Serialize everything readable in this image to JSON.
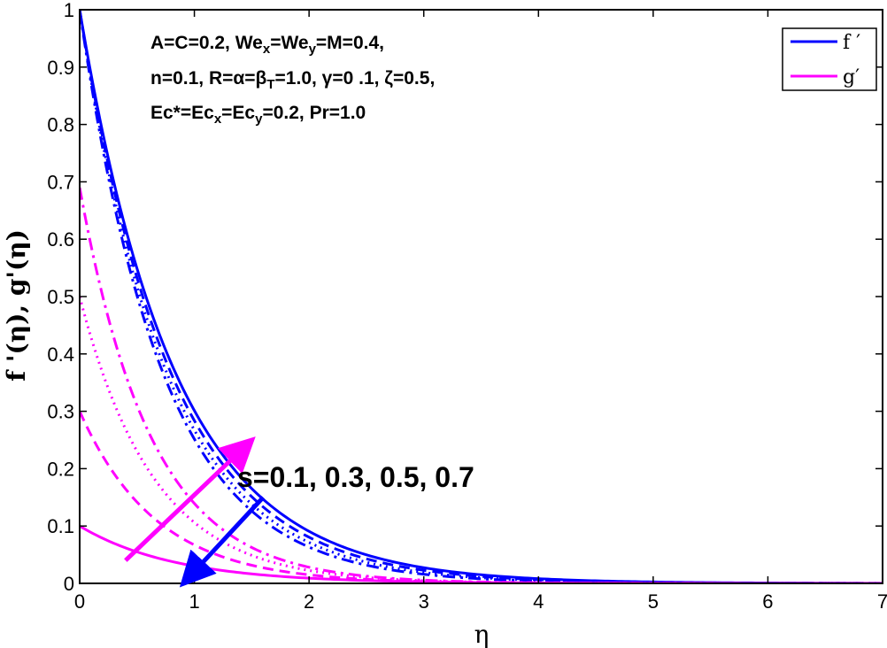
{
  "chart_data": {
    "type": "line",
    "xlabel": "η",
    "ylabel": "f '(η),    g'(η)",
    "xlim": [
      0,
      7
    ],
    "ylim": [
      0,
      1
    ],
    "x_ticks": [
      "0",
      "1",
      "2",
      "3",
      "4",
      "5",
      "6",
      "7"
    ],
    "y_ticks": [
      "0",
      "0.1",
      "0.2",
      "0.3",
      "0.4",
      "0.5",
      "0.6",
      "0.7",
      "0.8",
      "0.9",
      "1"
    ],
    "grid": false,
    "legend_position": "top-right",
    "legend": [
      {
        "label": "f ′",
        "color": "#0000ff"
      },
      {
        "label": "g′",
        "color": "#ff00ff"
      }
    ],
    "annotation_lines": [
      [
        {
          "text": "A=C=0.2, We"
        },
        {
          "text": "x",
          "sub": true
        },
        {
          "text": "=We"
        },
        {
          "text": "y",
          "sub": true
        },
        {
          "text": "=M=0.4,"
        }
      ],
      [
        {
          "text": "n=0.1, R=α=β"
        },
        {
          "text": "T",
          "sub": true
        },
        {
          "text": "=1.0, γ=0 .1, ζ=0.5,"
        }
      ],
      [
        {
          "text": "Ec*=Ec"
        },
        {
          "text": "x",
          "sub": true
        },
        {
          "text": "=Ec"
        },
        {
          "text": "y",
          "sub": true
        },
        {
          "text": "=0.2, Pr=1.0"
        }
      ]
    ],
    "parameter_label": "s=0.1, 0.3, 0.5, 0.7",
    "arrows": [
      {
        "name": "g-increase-arrow",
        "color": "#ff00ff",
        "from": [
          0.4,
          0.04
        ],
        "to": [
          1.45,
          0.24
        ]
      },
      {
        "name": "f-decrease-arrow",
        "color": "#0000ff",
        "from": [
          1.6,
          0.15
        ],
        "to": [
          0.95,
          0.01
        ]
      }
    ],
    "series": [
      {
        "name": "f ′",
        "color": "#0000ff",
        "dash": "solid",
        "y0": 1.0,
        "decay": 1.2
      },
      {
        "name": "f ′",
        "color": "#0000ff",
        "dash": "dashed",
        "y0": 1.0,
        "decay": 1.26
      },
      {
        "name": "f ′",
        "color": "#0000ff",
        "dash": "dotted",
        "y0": 1.0,
        "decay": 1.32
      },
      {
        "name": "f ′",
        "color": "#0000ff",
        "dash": "dashdot",
        "y0": 1.0,
        "decay": 1.38
      },
      {
        "name": "g′",
        "color": "#ff00ff",
        "dash": "solid",
        "y0": 0.1,
        "decay": 1.2
      },
      {
        "name": "g′",
        "color": "#ff00ff",
        "dash": "dashed",
        "y0": 0.3,
        "decay": 1.5
      },
      {
        "name": "g′",
        "color": "#ff00ff",
        "dash": "dotted",
        "y0": 0.5,
        "decay": 1.55
      },
      {
        "name": "g′",
        "color": "#ff00ff",
        "dash": "dashdot",
        "y0": 0.69,
        "decay": 1.6
      }
    ]
  }
}
